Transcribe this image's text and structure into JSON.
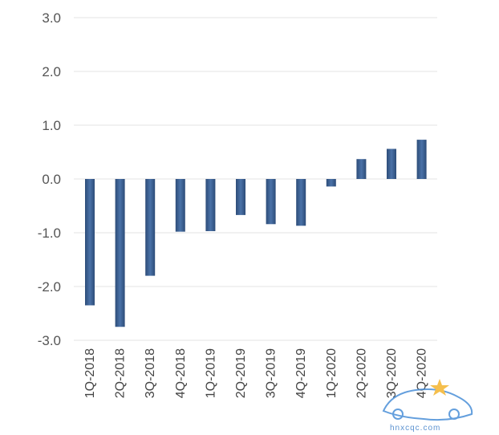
{
  "chart_data": {
    "type": "bar",
    "categories": [
      "1Q-2018",
      "2Q-2018",
      "3Q-2018",
      "4Q-2018",
      "1Q-2019",
      "2Q-2019",
      "3Q-2019",
      "4Q-2019",
      "1Q-2020",
      "2Q-2020",
      "3Q-2020",
      "4Q-2020"
    ],
    "values": [
      -2.35,
      -2.75,
      -1.8,
      -0.98,
      -0.97,
      -0.67,
      -0.84,
      -0.87,
      -0.14,
      0.37,
      0.56,
      0.73
    ],
    "y_ticks": [
      "3.0",
      "2.0",
      "1.0",
      "0.0",
      "-1.0",
      "-2.0",
      "-3.0"
    ],
    "ylim": [
      -3.0,
      3.0
    ],
    "grid": true,
    "bar_color": "#3a5f91"
  },
  "watermark": {
    "text": "hnxcqc.com"
  }
}
